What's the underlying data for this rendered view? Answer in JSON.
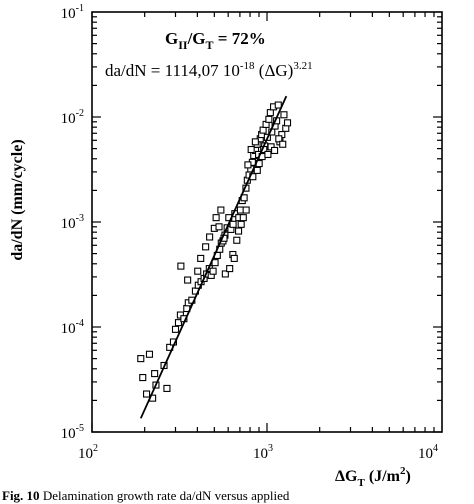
{
  "chart_data": {
    "type": "scatter",
    "title": "",
    "xlabel": "ΔG_T (J/m²)",
    "ylabel": "da/dN (mm/cycle)",
    "x_scale": "log",
    "y_scale": "log",
    "xlim": [
      100,
      10000
    ],
    "ylim": [
      1e-05,
      0.1
    ],
    "grid": false,
    "legend": "none",
    "x_ticks": [
      {
        "base": "10",
        "exp": "2",
        "value": 100
      },
      {
        "base": "10",
        "exp": "3",
        "value": 1000
      },
      {
        "base": "10",
        "exp": "4",
        "value": 10000
      }
    ],
    "y_ticks": [
      {
        "base": "10",
        "exp": "-5",
        "value": 1e-05
      },
      {
        "base": "10",
        "exp": "-4",
        "value": 0.0001
      },
      {
        "base": "10",
        "exp": "-3",
        "value": 0.001
      },
      {
        "base": "10",
        "exp": "-2",
        "value": 0.01
      },
      {
        "base": "10",
        "exp": "-1",
        "value": 0.1
      }
    ],
    "annotations": {
      "ratio": {
        "prefix": "G",
        "sub1": "II",
        "mid": "/G",
        "sub2": "T",
        "suffix": " = 72%"
      },
      "law": {
        "text": "da/dN = 1114,07 10",
        "exp1": "-18",
        "mid": " (ΔG)",
        "exp2": "3.21"
      }
    },
    "xlabel_parts": {
      "delta": "ΔG",
      "sub": "T",
      "unit_open": " (J/m",
      "unit_exp": "2",
      "unit_close": ")"
    },
    "fit_line": {
      "x": [
        190,
        1290
      ],
      "y": [
        1.35e-05,
        0.0158
      ]
    },
    "points": [
      [
        190,
        5e-05
      ],
      [
        195,
        3.3e-05
      ],
      [
        205,
        2.3e-05
      ],
      [
        213,
        5.5e-05
      ],
      [
        222,
        2.1e-05
      ],
      [
        232,
        2.8e-05
      ],
      [
        258,
        4.3e-05
      ],
      [
        278,
        6.4e-05
      ],
      [
        292,
        7.2e-05
      ],
      [
        300,
        9.5e-05
      ],
      [
        312,
        0.00011
      ],
      [
        320,
        0.00013
      ],
      [
        335,
        0.00012
      ],
      [
        348,
        0.00015
      ],
      [
        355,
        0.00017
      ],
      [
        372,
        0.00018
      ],
      [
        390,
        0.00022
      ],
      [
        405,
        0.00025
      ],
      [
        420,
        0.00027
      ],
      [
        437,
        0.00029
      ],
      [
        452,
        0.00032
      ],
      [
        468,
        0.00036
      ],
      [
        480,
        0.00031
      ],
      [
        492,
        0.00034
      ],
      [
        505,
        0.00041
      ],
      [
        520,
        0.00048
      ],
      [
        537,
        0.00055
      ],
      [
        548,
        0.00063
      ],
      [
        560,
        0.00066
      ],
      [
        575,
        0.00075
      ],
      [
        592,
        0.00088
      ],
      [
        605,
        0.0011
      ],
      [
        622,
        0.00085
      ],
      [
        640,
        0.00095
      ],
      [
        655,
        0.0012
      ],
      [
        672,
        0.00067
      ],
      [
        690,
        0.0011
      ],
      [
        705,
        0.0013
      ],
      [
        722,
        0.0016
      ],
      [
        740,
        0.0017
      ],
      [
        758,
        0.0021
      ],
      [
        772,
        0.0025
      ],
      [
        790,
        0.0028
      ],
      [
        808,
        0.0032
      ],
      [
        825,
        0.0037
      ],
      [
        840,
        0.0043
      ],
      [
        860,
        0.0048
      ],
      [
        878,
        0.0055
      ],
      [
        895,
        0.0044
      ],
      [
        915,
        0.0062
      ],
      [
        932,
        0.0068
      ],
      [
        950,
        0.0075
      ],
      [
        970,
        0.0053
      ],
      [
        988,
        0.0085
      ],
      [
        1005,
        0.0064
      ],
      [
        1025,
        0.0095
      ],
      [
        1045,
        0.011
      ],
      [
        1065,
        0.0072
      ],
      [
        1090,
        0.0125
      ],
      [
        1112,
        0.0082
      ],
      [
        1135,
        0.0092
      ],
      [
        1160,
        0.013
      ],
      [
        1185,
        0.0058
      ],
      [
        1215,
        0.0068
      ],
      [
        1250,
        0.0105
      ],
      [
        1280,
        0.0078
      ],
      [
        1310,
        0.0088
      ],
      [
        322,
        0.00038
      ],
      [
        352,
        0.00028
      ],
      [
        402,
        0.00034
      ],
      [
        418,
        0.00045
      ],
      [
        446,
        0.00058
      ],
      [
        470,
        0.00072
      ],
      [
        500,
        0.00087
      ],
      [
        512,
        0.0011
      ],
      [
        532,
        0.0009
      ],
      [
        545,
        0.0013
      ],
      [
        568,
        0.0007
      ],
      [
        578,
        0.00032
      ],
      [
        612,
        0.00036
      ],
      [
        638,
        0.00049
      ],
      [
        650,
        0.00045
      ],
      [
        688,
        0.00082
      ],
      [
        712,
        0.00095
      ],
      [
        732,
        0.0011
      ],
      [
        760,
        0.0013
      ],
      [
        778,
        0.0035
      ],
      [
        812,
        0.0049
      ],
      [
        830,
        0.0027
      ],
      [
        858,
        0.0058
      ],
      [
        880,
        0.0031
      ],
      [
        902,
        0.0036
      ],
      [
        938,
        0.0042
      ],
      [
        958,
        0.0049
      ],
      [
        1012,
        0.0044
      ],
      [
        1055,
        0.0052
      ],
      [
        1105,
        0.0048
      ],
      [
        1168,
        0.0062
      ],
      [
        1230,
        0.0055
      ],
      [
        268,
        2.6e-05
      ],
      [
        228,
        3.6e-05
      ]
    ]
  },
  "caption": {
    "fig": "Fig. 10",
    "text": " Delamination growth rate da/dN versus applied"
  }
}
